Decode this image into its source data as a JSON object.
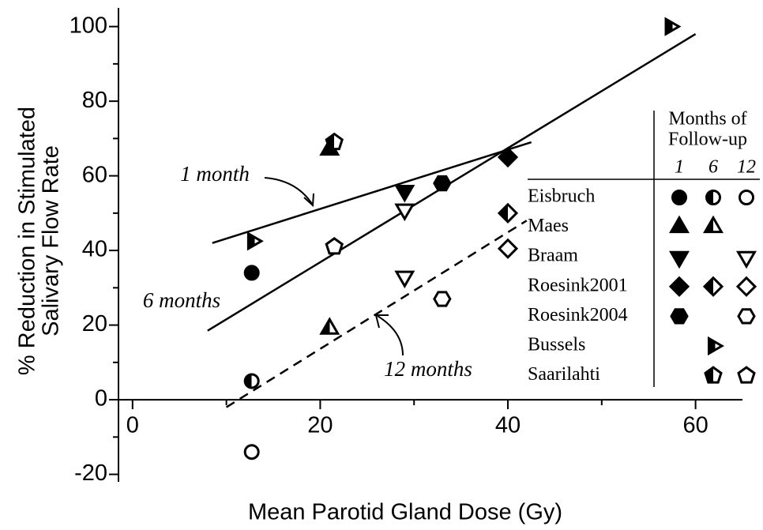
{
  "chart_data": {
    "type": "scatter",
    "xlabel": "Mean Parotid Gland Dose (Gy)",
    "ylabel": [
      "% Reduction in Stimulated",
      "Salivary Flow Rate"
    ],
    "xlim": [
      -1.5,
      65
    ],
    "ylim": [
      -22,
      105
    ],
    "xticks": [
      0,
      20,
      40,
      60
    ],
    "yticks": [
      -20,
      0,
      20,
      40,
      60,
      80,
      100
    ],
    "xminor": [
      10,
      30,
      50
    ],
    "yminor": [
      -10,
      10,
      30,
      50,
      70,
      90
    ],
    "legend": {
      "title": [
        "Months of",
        "Follow-up"
      ],
      "columns": [
        "1",
        "6",
        "12"
      ]
    },
    "series": [
      {
        "name": "Eisbruch",
        "marker": "circle",
        "points": [
          {
            "fill": "full",
            "x": 12.7,
            "y": 34
          },
          {
            "fill": "half",
            "x": 12.7,
            "y": 5
          },
          {
            "fill": "open",
            "x": 12.7,
            "y": -14
          }
        ]
      },
      {
        "name": "Maes",
        "marker": "triangle-up",
        "points": [
          {
            "fill": "full",
            "x": 21,
            "y": 67
          },
          {
            "fill": "half",
            "x": 21,
            "y": 19
          }
        ]
      },
      {
        "name": "Braam",
        "marker": "triangle-down",
        "points": [
          {
            "fill": "full",
            "x": 29,
            "y": 56
          },
          {
            "fill": "open",
            "x": 29,
            "y": 51
          },
          {
            "fill": "open",
            "x": 29,
            "y": 33
          }
        ]
      },
      {
        "name": "Roesink2001",
        "marker": "diamond",
        "points": [
          {
            "fill": "full",
            "x": 40,
            "y": 65
          },
          {
            "fill": "half",
            "x": 40,
            "y": 50
          },
          {
            "fill": "open",
            "x": 40,
            "y": 40.5
          }
        ]
      },
      {
        "name": "Roesink2004",
        "marker": "hexagon",
        "points": [
          {
            "fill": "full",
            "x": 33,
            "y": 58
          },
          {
            "fill": "open",
            "x": 33,
            "y": 27
          }
        ]
      },
      {
        "name": "Bussels",
        "marker": "triangle-right",
        "points": [
          {
            "fill": "half",
            "x": 12.8,
            "y": 42.5
          },
          {
            "fill": "half",
            "x": 57.3,
            "y": 100
          }
        ]
      },
      {
        "name": "Saarilahti",
        "marker": "pentagon",
        "points": [
          {
            "fill": "half",
            "x": 21.5,
            "y": 69
          },
          {
            "fill": "open",
            "x": 21.5,
            "y": 41
          }
        ]
      }
    ],
    "fits": [
      {
        "label": "1 month",
        "dash": false,
        "x": [
          8.5,
          42.5
        ],
        "y": [
          42,
          69
        ]
      },
      {
        "label": "6 months",
        "dash": false,
        "x": [
          8,
          60
        ],
        "y": [
          18.5,
          98
        ]
      },
      {
        "label": "12 months",
        "dash": true,
        "x": [
          10,
          42
        ],
        "y": [
          -2,
          48
        ]
      }
    ]
  }
}
